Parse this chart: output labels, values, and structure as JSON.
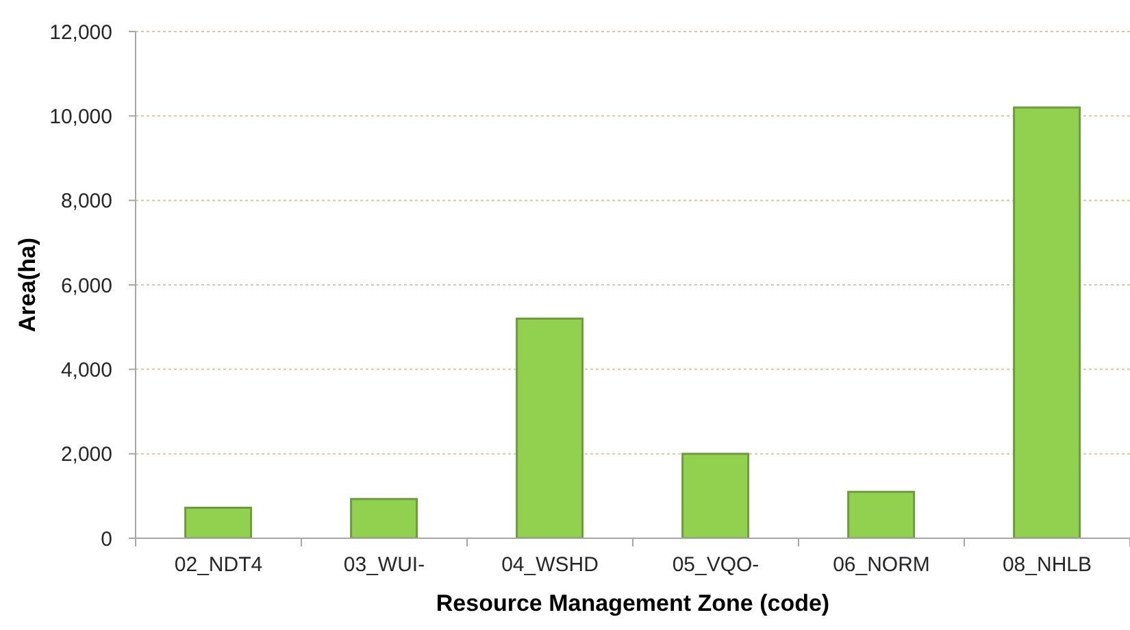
{
  "chart_data": {
    "type": "bar",
    "xlabel": "Resource Management Zone (code)",
    "ylabel": "Area(ha)",
    "categories": [
      "02_NDT4",
      "03_WUI-",
      "04_WSHD",
      "05_VQO-",
      "06_NORM",
      "08_NHLB"
    ],
    "values": [
      720,
      930,
      5200,
      2000,
      1100,
      10200
    ],
    "color": "#92d050",
    "ylim": [
      0,
      12000
    ],
    "yticks": [
      {
        "value": 0,
        "label": "0"
      },
      {
        "value": 2000,
        "label": "2,000"
      },
      {
        "value": 4000,
        "label": "4,000"
      },
      {
        "value": 6000,
        "label": "6,000"
      },
      {
        "value": 8000,
        "label": "8,000"
      },
      {
        "value": 10000,
        "label": "10,000"
      },
      {
        "value": 12000,
        "label": "12,000"
      }
    ],
    "grid": "y"
  }
}
